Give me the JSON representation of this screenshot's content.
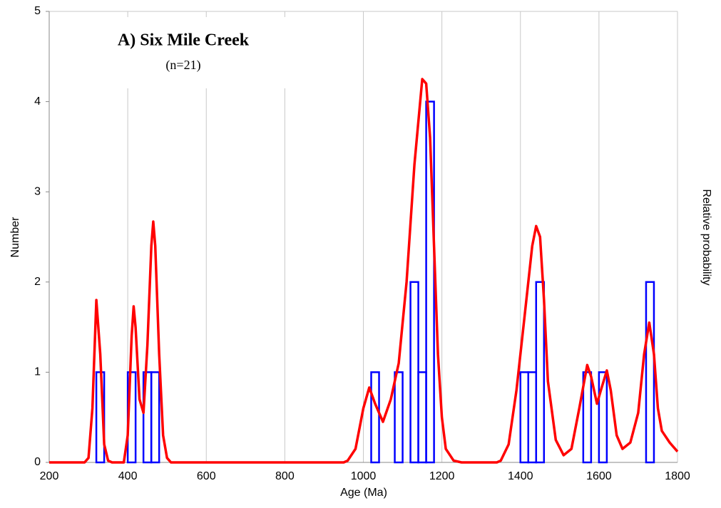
{
  "chart_data": {
    "type": "histogram",
    "title": "A) Six Mile Creek",
    "subtitle": "(n=21)",
    "xlabel": "Age (Ma)",
    "ylabel": "Number",
    "y2label": "Relative probability",
    "color": "#0000ff",
    "bins": [
      200,
      220,
      240,
      260,
      280,
      300,
      320,
      340,
      360,
      380,
      400,
      420,
      440,
      460,
      480,
      500,
      520,
      540,
      560,
      580,
      600,
      620,
      640,
      660,
      680,
      700,
      720,
      740,
      760,
      780,
      800,
      820,
      840,
      860,
      880,
      900,
      920,
      940,
      960,
      980,
      1000,
      1020,
      1040,
      1060,
      1080,
      1100,
      1120,
      1140,
      1160,
      1180,
      1200,
      1220,
      1240,
      1260,
      1280,
      1300,
      1320,
      1340,
      1360,
      1380,
      1400,
      1420,
      1440,
      1460,
      1480,
      1500,
      1520,
      1540,
      1560,
      1580,
      1600,
      1620,
      1640,
      1660,
      1680,
      1700,
      1720,
      1740,
      1760,
      1780,
      1800
    ],
    "values": [
      0,
      0,
      0,
      0,
      0,
      0,
      1,
      0,
      0,
      0,
      1,
      0,
      1,
      1,
      0,
      0,
      0,
      0,
      0,
      0,
      0,
      0,
      0,
      0,
      0,
      0,
      0,
      0,
      0,
      0,
      0,
      0,
      0,
      0,
      0,
      0,
      0,
      0,
      0,
      0,
      0,
      1,
      0,
      0,
      1,
      0,
      2,
      1,
      4,
      0,
      0,
      0,
      0,
      0,
      0,
      0,
      0,
      0,
      0,
      0,
      1,
      1,
      2,
      0,
      0,
      0,
      0,
      0,
      1,
      0,
      1,
      0,
      0,
      0,
      0,
      0,
      2,
      0,
      0,
      0
    ],
    "curve": {
      "type": "line",
      "color": "#ff0000",
      "x": [
        200,
        290,
        300,
        310,
        320,
        330,
        340,
        350,
        360,
        390,
        400,
        410,
        415,
        420,
        430,
        440,
        450,
        460,
        465,
        470,
        480,
        490,
        500,
        510,
        950,
        960,
        980,
        1000,
        1015,
        1030,
        1050,
        1070,
        1090,
        1110,
        1130,
        1150,
        1160,
        1170,
        1180,
        1190,
        1200,
        1210,
        1230,
        1250,
        1340,
        1350,
        1370,
        1390,
        1410,
        1430,
        1440,
        1450,
        1460,
        1470,
        1490,
        1510,
        1530,
        1550,
        1570,
        1580,
        1595,
        1605,
        1620,
        1630,
        1645,
        1660,
        1680,
        1700,
        1715,
        1728,
        1740,
        1750,
        1760,
        1780,
        1800
      ],
      "values": [
        0,
        0,
        0.05,
        0.6,
        1.8,
        1.2,
        0.2,
        0.02,
        0,
        0,
        0.3,
        1.4,
        1.73,
        1.5,
        0.7,
        0.55,
        1.3,
        2.4,
        2.67,
        2.4,
        1.2,
        0.3,
        0.05,
        0,
        0,
        0.02,
        0.15,
        0.6,
        0.83,
        0.65,
        0.45,
        0.7,
        1.1,
        2.0,
        3.3,
        4.25,
        4.2,
        3.6,
        2.4,
        1.2,
        0.5,
        0.15,
        0.02,
        0,
        0,
        0.02,
        0.2,
        0.8,
        1.6,
        2.4,
        2.62,
        2.5,
        1.8,
        0.9,
        0.25,
        0.08,
        0.15,
        0.6,
        1.08,
        0.95,
        0.65,
        0.8,
        1.02,
        0.8,
        0.3,
        0.15,
        0.22,
        0.55,
        1.2,
        1.55,
        1.2,
        0.6,
        0.35,
        0.22,
        0.12
      ]
    },
    "xlim": [
      200,
      1800
    ],
    "xticks": [
      200,
      400,
      600,
      800,
      1000,
      1200,
      1400,
      1600,
      1800
    ],
    "ylim": [
      0,
      5
    ],
    "yticks": [
      0,
      1,
      2,
      3,
      4,
      5
    ],
    "grid": true
  }
}
